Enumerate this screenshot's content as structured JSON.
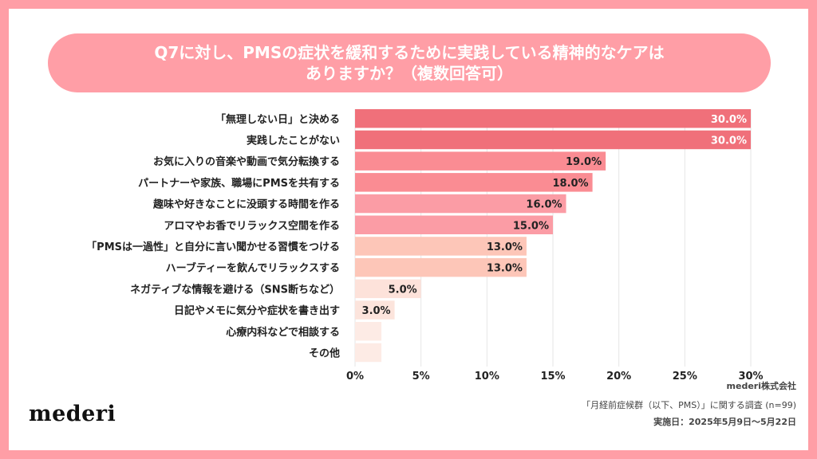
{
  "title": {
    "line1": "Q7に対し、PMSの症状を緩和するために実践している精神的なケアは",
    "line2": "ありますか？（複数回答可）"
  },
  "chart_data": {
    "type": "bar",
    "orientation": "horizontal",
    "title": "Q7に対し、PMSの症状を緩和するために実践している精神的なケアはありますか？（複数回答可）",
    "xlabel": "",
    "ylabel": "",
    "xlim": [
      0,
      30
    ],
    "x_ticks": [
      "0%",
      "5%",
      "10%",
      "15%",
      "20%",
      "25%",
      "30%"
    ],
    "grid": true,
    "categories": [
      "「無理しない日」と決める",
      "実践したことがない",
      "お気に入りの音楽や動画で気分転換する",
      "パートナーや家族、職場にPMSを共有する",
      "趣味や好きなことに没頭する時間を作る",
      "アロマやお香でリラックス空間を作る",
      "「PMSは一過性」と自分に言い聞かせる習慣をつける",
      "ハーブティーを飲んでリラックスする",
      "ネガティブな情報を避ける（SNS断ちなど）",
      "日記やメモに気分や症状を書き出す",
      "心療内科などで相談する",
      "その他"
    ],
    "values": [
      30.0,
      30.0,
      19.0,
      18.0,
      16.0,
      15.0,
      13.0,
      13.0,
      5.0,
      3.0,
      2.0,
      2.0
    ],
    "data_labels": [
      "30.0%",
      "30.0%",
      "19.0%",
      "18.0%",
      "16.0%",
      "15.0%",
      "13.0%",
      "13.0%",
      "5.0%",
      "3.0%",
      "",
      ""
    ],
    "bar_colors": [
      "#F0707A",
      "#F0707A",
      "#FA8C93",
      "#FA8C93",
      "#FB9CA5",
      "#FB9CA5",
      "#FDC6B8",
      "#FDC6B8",
      "#FDE2DA",
      "#FCE4DC",
      "#FDEBE5",
      "#FDEBE5"
    ],
    "label_colors": [
      "#ffffff",
      "#ffffff",
      "#222222",
      "#222222",
      "#222222",
      "#222222",
      "#222222",
      "#222222",
      "#222222",
      "#222222",
      "#222222",
      "#222222"
    ]
  },
  "footer": {
    "company": "mederi株式会社",
    "survey": "「月経前症候群（以下、PMS）」に関する調査 (n=99)",
    "date": "実施日：2025年5月9日〜5月22日"
  },
  "brand": {
    "logo": "mederi",
    "accent": "#FF9EA6"
  }
}
